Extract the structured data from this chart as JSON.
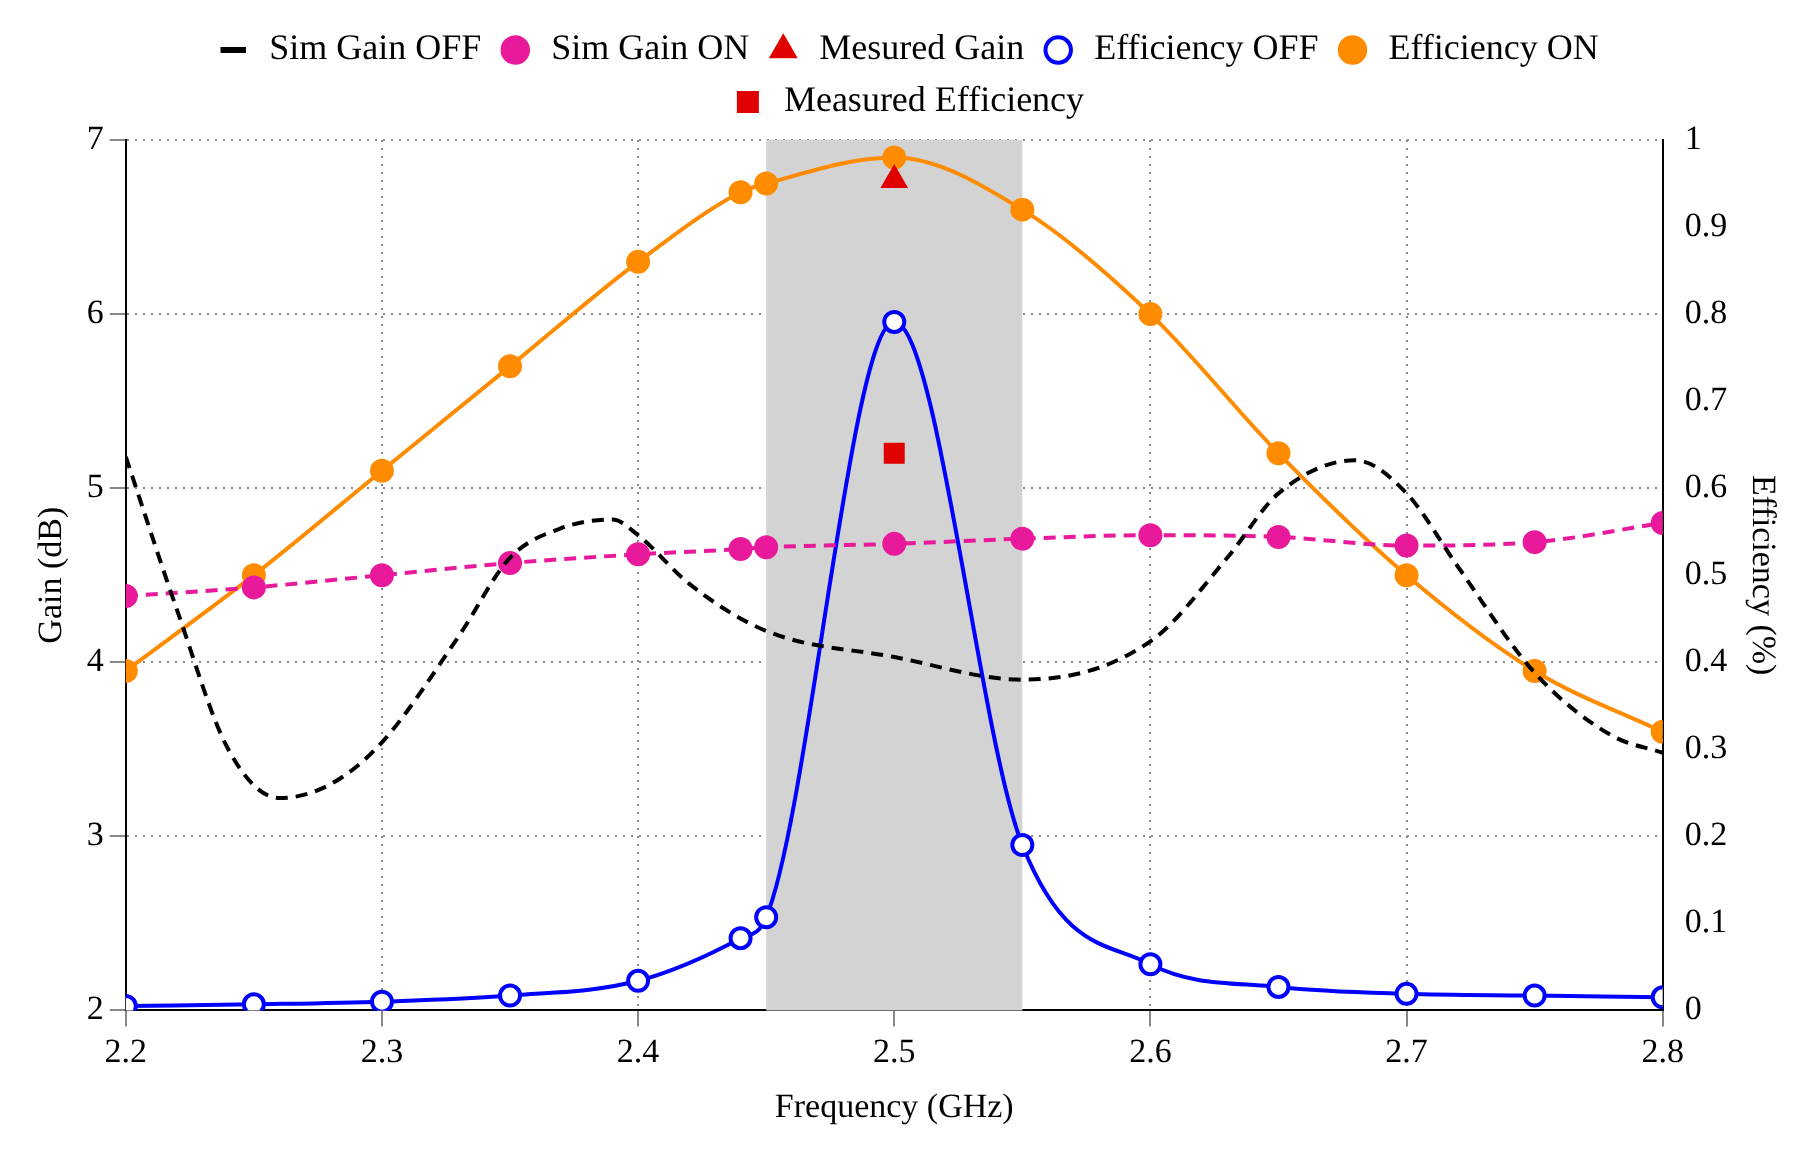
{
  "chart_data": {
    "type": "line",
    "xlabel": "Frequency (GHz)",
    "ylabel": "Gain (dB)",
    "y2label": "Efficiency (%)",
    "xlim": [
      2.2,
      2.8
    ],
    "xticks": [
      2.2,
      2.3,
      2.4,
      2.5,
      2.6,
      2.7,
      2.8
    ],
    "ylim": [
      2,
      7
    ],
    "yticks": [
      2,
      3,
      4,
      5,
      6,
      7
    ],
    "y2lim": [
      0,
      1
    ],
    "y2ticks": [
      0,
      0.1,
      0.2,
      0.3,
      0.4,
      0.5,
      0.6,
      0.7,
      0.8,
      0.9,
      1
    ],
    "grid": true,
    "legend": "top",
    "bands": [
      {
        "axis": "x",
        "from": 2.45,
        "to": 2.55,
        "color": "#d3d3d3"
      }
    ],
    "series": [
      {
        "name": "Sim Gain OFF",
        "type": "line",
        "color": "#000000",
        "line_style": "dashed",
        "marker": "none",
        "x": [
          2.2,
          2.22,
          2.24,
          2.26,
          2.28,
          2.3,
          2.33,
          2.35,
          2.37,
          2.39,
          2.4,
          2.42,
          2.45,
          2.5,
          2.55,
          2.6,
          2.63,
          2.65,
          2.68,
          2.7,
          2.72,
          2.75,
          2.78,
          2.8
        ],
        "values": [
          5.18,
          4.3,
          3.5,
          3.22,
          3.3,
          3.54,
          4.15,
          4.6,
          4.77,
          4.82,
          4.73,
          4.45,
          4.18,
          4.03,
          3.9,
          4.12,
          4.6,
          4.97,
          5.16,
          4.97,
          4.55,
          3.94,
          3.58,
          3.48
        ]
      },
      {
        "name": "Sim Gain ON",
        "type": "line",
        "color": "#e8199a",
        "line_style": "dashed",
        "marker": "circle",
        "x": [
          2.2,
          2.25,
          2.3,
          2.35,
          2.4,
          2.44,
          2.45,
          2.5,
          2.55,
          2.6,
          2.65,
          2.7,
          2.75,
          2.8
        ],
        "values": [
          4.38,
          4.43,
          4.5,
          4.57,
          4.62,
          4.65,
          4.66,
          4.68,
          4.71,
          4.73,
          4.72,
          4.67,
          4.69,
          4.8
        ]
      },
      {
        "name": "Mesured Gain",
        "type": "scatter",
        "color": "#e00000",
        "marker": "triangle",
        "x": [
          2.5
        ],
        "values": [
          6.77
        ]
      },
      {
        "name": "Efficiency OFF",
        "type": "line",
        "axis": "y2",
        "color": "#0000ff",
        "line_style": "solid",
        "marker": "circle",
        "x": [
          2.2,
          2.25,
          2.3,
          2.35,
          2.4,
          2.44,
          2.45,
          2.5,
          2.55,
          2.6,
          2.65,
          2.7,
          2.75,
          2.8
        ],
        "values": [
          0.005,
          0.007,
          0.01,
          0.017,
          0.034,
          0.083,
          0.107,
          0.791,
          0.19,
          0.053,
          0.027,
          0.019,
          0.017,
          0.015
        ]
      },
      {
        "name": "Efficiency ON",
        "type": "line",
        "axis": "y2",
        "color": "#ff8c00",
        "line_style": "solid",
        "marker": "circle",
        "x": [
          2.2,
          2.25,
          2.3,
          2.35,
          2.4,
          2.44,
          2.45,
          2.5,
          2.55,
          2.6,
          2.65,
          2.7,
          2.75,
          2.8
        ],
        "values": [
          0.39,
          0.5,
          0.62,
          0.74,
          0.86,
          0.94,
          0.95,
          0.98,
          0.92,
          0.8,
          0.64,
          0.5,
          0.39,
          0.32
        ]
      },
      {
        "name": "Measured Efficiency",
        "type": "scatter",
        "axis": "y2",
        "color": "#e00000",
        "marker": "square",
        "x": [
          2.5
        ],
        "values": [
          0.64
        ]
      }
    ]
  }
}
